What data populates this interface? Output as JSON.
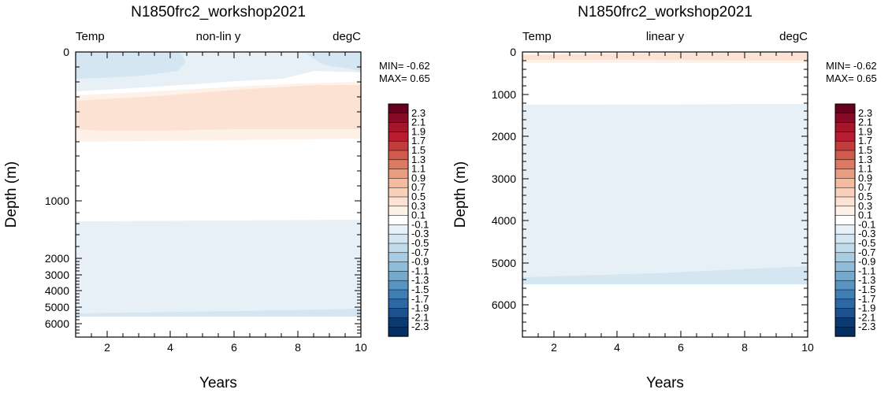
{
  "colorbar": {
    "labels": [
      "2.3",
      "2.1",
      "1.9",
      "1.7",
      "1.5",
      "1.3",
      "1.1",
      "0.9",
      "0.7",
      "0.5",
      "0.3",
      "0.1",
      "-0.1",
      "-0.3",
      "-0.5",
      "-0.7",
      "-0.9",
      "-1.1",
      "-1.3",
      "-1.5",
      "-1.7",
      "-1.9",
      "-2.1",
      "-2.3"
    ],
    "colors": [
      "#67001f",
      "#890a26",
      "#a5162b",
      "#b71c30",
      "#c33c3c",
      "#cf5b4c",
      "#db7a60",
      "#e89c80",
      "#f4bb9f",
      "#f9d0b8",
      "#fbe2d2",
      "#fdf1e8",
      "#ffffff",
      "#e7f0f7",
      "#d4e6f1",
      "#c0dbec",
      "#a8cce4",
      "#8fbdda",
      "#74aace",
      "#5995c2",
      "#3f7fb5",
      "#2d68a4",
      "#1d518e",
      "#0b3a70",
      "#053061"
    ]
  },
  "chart_data": [
    {
      "type": "heatmap",
      "title": "N1850frc2_workshop2021",
      "subtitle_left": "Temp",
      "subtitle_center": "non-lin y",
      "subtitle_right": "degC",
      "xlabel": "Years",
      "ylabel": "Depth (m)",
      "xlim": [
        1,
        10
      ],
      "x_ticks": [
        "2",
        "4",
        "6",
        "8",
        "10"
      ],
      "y_scale": "non-linear",
      "y_ticks": [
        "0",
        "1000",
        "2000",
        "3000",
        "4000",
        "5000",
        "6000"
      ],
      "min_label": "MIN= -0.62",
      "max_label": "MAX=  0.65",
      "fields": [
        {
          "depth_top": 0,
          "depth_bottom": 160,
          "value": -0.2
        },
        {
          "depth_top": 250,
          "depth_bottom": 560,
          "value": 0.25
        },
        {
          "depth_top": 1300,
          "depth_bottom": 5350,
          "value": -0.15
        },
        {
          "depth_top": 5350,
          "depth_bottom": 5500,
          "value": -0.25
        }
      ]
    },
    {
      "type": "heatmap",
      "title": "N1850frc2_workshop2021",
      "subtitle_left": "Temp",
      "subtitle_center": "linear y",
      "subtitle_right": "degC",
      "xlabel": "Years",
      "ylabel": "Depth (m)",
      "xlim": [
        1,
        10
      ],
      "ylim": [
        0,
        6700
      ],
      "x_ticks": [
        "2",
        "4",
        "6",
        "8",
        "10"
      ],
      "y_scale": "linear",
      "y_ticks": [
        "0",
        "1000",
        "2000",
        "3000",
        "4000",
        "5000",
        "6000"
      ],
      "min_label": "MIN= -0.62",
      "max_label": "MAX=  0.65",
      "fields": [
        {
          "depth_top": 0,
          "depth_bottom": 250,
          "value": 0.25
        },
        {
          "depth_top": 1250,
          "depth_bottom": 5400,
          "value": -0.15
        },
        {
          "depth_top": 5100,
          "depth_bottom": 5550,
          "value": -0.25
        }
      ]
    }
  ]
}
